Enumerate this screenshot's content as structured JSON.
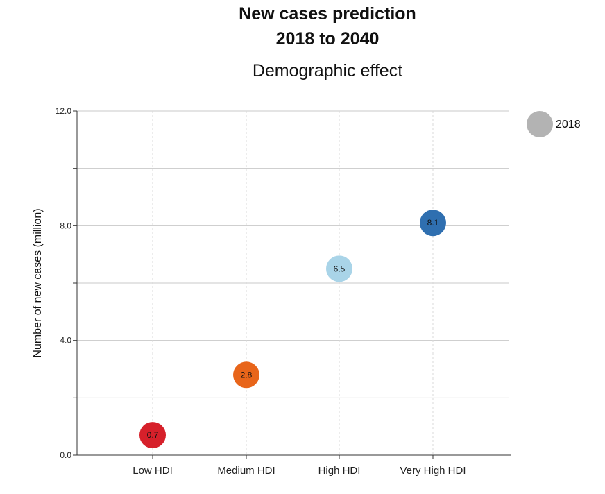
{
  "chart_data": {
    "type": "scatter",
    "title_line1": "New cases prediction",
    "title_line2": "2018 to 2040",
    "subtitle": "Demographic effect",
    "xlabel": "",
    "ylabel": "Number of new cases (million)",
    "ylim": [
      0,
      12
    ],
    "yticks": [
      0,
      2,
      4,
      6,
      8,
      10,
      12
    ],
    "ytick_labels": [
      "0.0",
      "",
      "4.0",
      "",
      "8.0",
      "",
      "12.0"
    ],
    "grid": true,
    "categories": [
      "Low HDI",
      "Medium HDI",
      "High HDI",
      "Very High HDI"
    ],
    "series": [
      {
        "name": "2018",
        "values": [
          0.7,
          2.8,
          6.5,
          8.1
        ],
        "labels": [
          "0.7",
          "2.8",
          "6.5",
          "8.1"
        ],
        "colors": [
          "#d6202a",
          "#e8651a",
          "#a9d4e8",
          "#2f6fb0"
        ]
      }
    ],
    "legend": {
      "position": "top-right",
      "label": "2018",
      "color": "#b3b3b3"
    }
  }
}
